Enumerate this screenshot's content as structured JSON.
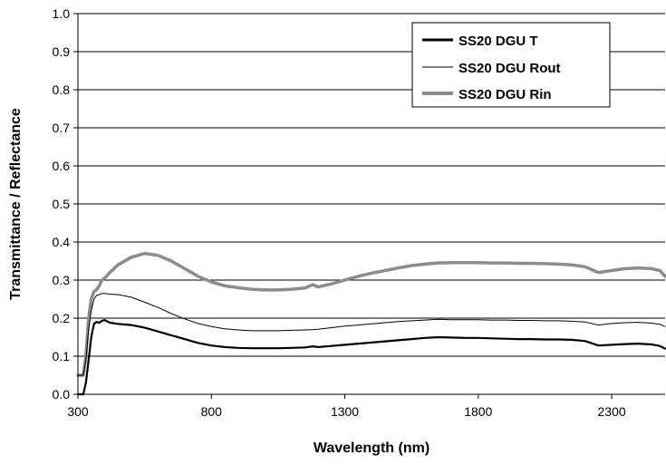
{
  "chart_data": {
    "type": "line",
    "title": "",
    "xlabel": "Wavelength (nm)",
    "ylabel": "Transmittance / Reflectance",
    "xlim": [
      300,
      2500
    ],
    "ylim": [
      0,
      1.0
    ],
    "x_ticks": [
      300,
      800,
      1300,
      1800,
      2300
    ],
    "x_tick_labels": [
      "300",
      "800",
      "1300",
      "1800",
      "2300"
    ],
    "y_ticks": [
      0.0,
      0.1,
      0.2,
      0.3,
      0.4,
      0.5,
      0.6,
      0.7,
      0.8,
      0.9,
      1.0
    ],
    "y_tick_labels": [
      "0.0",
      "0.1",
      "0.2",
      "0.3",
      "0.4",
      "0.5",
      "0.6",
      "0.7",
      "0.8",
      "0.9",
      "1.0"
    ],
    "grid": "horizontal",
    "legend_position": "top-right",
    "series": [
      {
        "name": "SS20 DGU T",
        "color": "#000000",
        "style": "thick",
        "x": [
          300,
          320,
          330,
          340,
          350,
          360,
          370,
          380,
          390,
          400,
          420,
          450,
          500,
          550,
          600,
          650,
          700,
          750,
          800,
          850,
          900,
          950,
          1000,
          1050,
          1100,
          1150,
          1180,
          1200,
          1250,
          1300,
          1350,
          1400,
          1450,
          1500,
          1550,
          1600,
          1650,
          1700,
          1750,
          1800,
          1850,
          1900,
          1950,
          2000,
          2050,
          2100,
          2150,
          2200,
          2250,
          2300,
          2350,
          2400,
          2450,
          2480,
          2500
        ],
        "y": [
          0.0,
          0.0,
          0.03,
          0.09,
          0.15,
          0.185,
          0.19,
          0.188,
          0.193,
          0.195,
          0.188,
          0.185,
          0.182,
          0.175,
          0.165,
          0.155,
          0.145,
          0.135,
          0.128,
          0.124,
          0.122,
          0.121,
          0.121,
          0.121,
          0.122,
          0.123,
          0.126,
          0.124,
          0.127,
          0.13,
          0.133,
          0.136,
          0.139,
          0.142,
          0.145,
          0.148,
          0.15,
          0.149,
          0.148,
          0.148,
          0.147,
          0.146,
          0.145,
          0.145,
          0.144,
          0.144,
          0.143,
          0.14,
          0.128,
          0.13,
          0.132,
          0.133,
          0.131,
          0.127,
          0.12
        ]
      },
      {
        "name": "SS20 DGU Rout",
        "color": "#000000",
        "style": "thin",
        "x": [
          300,
          320,
          330,
          340,
          350,
          360,
          370,
          380,
          390,
          400,
          420,
          450,
          500,
          550,
          600,
          650,
          700,
          750,
          800,
          850,
          900,
          950,
          1000,
          1050,
          1100,
          1150,
          1180,
          1200,
          1250,
          1300,
          1350,
          1400,
          1450,
          1500,
          1550,
          1600,
          1650,
          1700,
          1750,
          1800,
          1850,
          1900,
          1950,
          2000,
          2050,
          2100,
          2150,
          2200,
          2250,
          2300,
          2350,
          2400,
          2450,
          2480,
          2500
        ],
        "y": [
          0.05,
          0.05,
          0.09,
          0.17,
          0.22,
          0.25,
          0.26,
          0.262,
          0.265,
          0.265,
          0.263,
          0.262,
          0.255,
          0.242,
          0.228,
          0.212,
          0.198,
          0.186,
          0.178,
          0.172,
          0.169,
          0.167,
          0.167,
          0.167,
          0.168,
          0.169,
          0.17,
          0.171,
          0.175,
          0.179,
          0.182,
          0.185,
          0.188,
          0.191,
          0.193,
          0.195,
          0.197,
          0.196,
          0.196,
          0.196,
          0.195,
          0.195,
          0.194,
          0.194,
          0.193,
          0.193,
          0.192,
          0.19,
          0.182,
          0.186,
          0.188,
          0.189,
          0.187,
          0.184,
          0.178
        ]
      },
      {
        "name": "SS20 DGU Rin",
        "color": "#8c8c8c",
        "style": "thick",
        "x": [
          300,
          320,
          330,
          340,
          350,
          360,
          370,
          380,
          390,
          400,
          420,
          450,
          500,
          550,
          600,
          650,
          700,
          750,
          800,
          850,
          900,
          950,
          1000,
          1050,
          1100,
          1150,
          1180,
          1200,
          1250,
          1300,
          1350,
          1400,
          1450,
          1500,
          1550,
          1600,
          1650,
          1700,
          1750,
          1800,
          1850,
          1900,
          1950,
          2000,
          2050,
          2100,
          2150,
          2200,
          2250,
          2300,
          2350,
          2400,
          2450,
          2480,
          2500
        ],
        "y": [
          0.05,
          0.05,
          0.1,
          0.2,
          0.25,
          0.27,
          0.275,
          0.285,
          0.3,
          0.305,
          0.32,
          0.34,
          0.36,
          0.37,
          0.365,
          0.35,
          0.33,
          0.31,
          0.295,
          0.285,
          0.28,
          0.276,
          0.274,
          0.274,
          0.276,
          0.279,
          0.288,
          0.282,
          0.29,
          0.3,
          0.31,
          0.318,
          0.325,
          0.332,
          0.338,
          0.342,
          0.345,
          0.346,
          0.346,
          0.346,
          0.345,
          0.345,
          0.344,
          0.344,
          0.343,
          0.342,
          0.34,
          0.335,
          0.32,
          0.325,
          0.33,
          0.332,
          0.33,
          0.325,
          0.31
        ]
      }
    ]
  }
}
